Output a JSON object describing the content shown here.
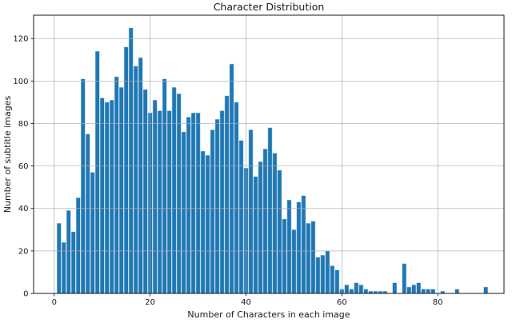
{
  "figure": {
    "title": "Character Distribution",
    "xlabel": "Number of Characters in each image",
    "ylabel": "Number of subtitle images"
  },
  "chart_data": {
    "type": "bar",
    "subtype": "histogram",
    "title": "Character Distribution",
    "xlabel": "Number of Characters in each image",
    "ylabel": "Number of subtitle images",
    "x": [
      1,
      2,
      3,
      4,
      5,
      6,
      7,
      8,
      9,
      10,
      11,
      12,
      13,
      14,
      15,
      16,
      17,
      18,
      19,
      20,
      21,
      22,
      23,
      24,
      25,
      26,
      27,
      28,
      29,
      30,
      31,
      32,
      33,
      34,
      35,
      36,
      37,
      38,
      39,
      40,
      41,
      42,
      43,
      44,
      45,
      46,
      47,
      48,
      49,
      50,
      51,
      52,
      53,
      54,
      55,
      56,
      57,
      58,
      59,
      60,
      61,
      62,
      63,
      64,
      65,
      66,
      67,
      68,
      69,
      70,
      71,
      72,
      73,
      74,
      75,
      76,
      77,
      78,
      79,
      80,
      81,
      82,
      83,
      84,
      85,
      86,
      87,
      88,
      89,
      90
    ],
    "values": [
      33,
      24,
      39,
      29,
      45,
      101,
      75,
      57,
      114,
      92,
      90,
      91,
      102,
      97,
      116,
      125,
      107,
      111,
      96,
      85,
      91,
      86,
      101,
      86,
      97,
      94,
      76,
      83,
      85,
      85,
      67,
      65,
      77,
      82,
      86,
      93,
      108,
      90,
      72,
      59,
      77,
      55,
      62,
      68,
      78,
      66,
      58,
      35,
      44,
      30,
      43,
      46,
      33,
      34,
      17,
      18,
      20,
      13,
      11,
      2,
      4,
      2,
      5,
      4,
      2,
      1,
      1,
      1,
      1,
      0,
      5,
      0,
      14,
      3,
      4,
      5,
      2,
      2,
      2,
      0,
      1,
      0,
      0,
      2,
      0,
      0,
      0,
      0,
      0,
      3
    ],
    "xticks": [
      0,
      20,
      40,
      60,
      80
    ],
    "yticks": [
      0,
      20,
      40,
      60,
      80,
      100,
      120
    ],
    "xlim": [
      -4.3,
      93.8
    ],
    "ylim": [
      0,
      131
    ],
    "grid": true,
    "grid_over_bars": true,
    "legend": false,
    "bar_color": "#1f77b4",
    "bar_edge_color": "#a3c8e4",
    "grid_color": "#b0b0b0",
    "spine_color": "#1a1a1a",
    "bar_relative_width": 0.85
  }
}
